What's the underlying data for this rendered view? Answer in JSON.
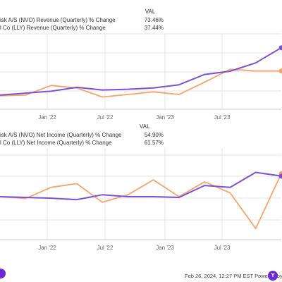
{
  "footer": {
    "text": "Feb 26, 2024, 12:27 PM EST Powered by",
    "logo_text": "Y"
  },
  "colors": {
    "nvo": "#7b52d6",
    "lly": "#f7a46b",
    "grid": "#e6e6e6",
    "logo": "#6c2ad6"
  },
  "chart_data": [
    {
      "type": "line",
      "legend_header": "VAL",
      "series": [
        {
          "name": "isk A/S (NVO) Revenue (Quarterly) % Change",
          "value_label": "73.46%",
          "color": "#7b52d6",
          "values": [
            0,
            3,
            6,
            12,
            8,
            9,
            11,
            16,
            32,
            37,
            50,
            73.46
          ]
        },
        {
          "name": "l Co (LLY) Revenue (Quarterly) % Change",
          "value_label": "37.44%",
          "color": "#f7a46b",
          "values": [
            -1,
            0,
            15,
            11,
            -3,
            1,
            5,
            1,
            20,
            40,
            37.44,
            37.44
          ]
        }
      ],
      "x_ticks": [
        "Jan '22",
        "Jul '22",
        "Jan '23",
        "Jul '23"
      ],
      "ylim": [
        -22,
        95
      ],
      "grid": true
    },
    {
      "type": "line",
      "legend_header": "VAL",
      "series": [
        {
          "name": "isk A/S (NVO) Net Income (Quarterly) % Change",
          "value_label": "54.90%",
          "color": "#7b52d6",
          "values": [
            0,
            -2,
            -4,
            -8,
            5,
            0,
            0,
            -2,
            30,
            25,
            65,
            54.9
          ]
        },
        {
          "name": "l Co (LLY) Net Income (Quarterly) % Change",
          "value_label": "61.57%",
          "color": "#f7a46b",
          "values": [
            0,
            -5,
            25,
            35,
            -15,
            5,
            45,
            0,
            40,
            10,
            -85,
            61.57
          ]
        }
      ],
      "x_ticks": [
        "Jan '22",
        "Jul '22",
        "Jan '23",
        "Jul '23"
      ],
      "ylim": [
        -115,
        130
      ],
      "grid": true
    }
  ]
}
